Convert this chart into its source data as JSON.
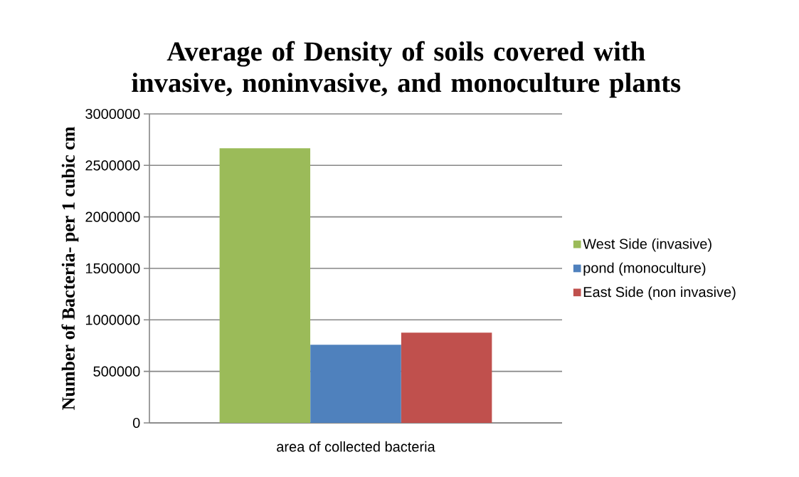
{
  "chart_data": {
    "type": "bar",
    "title": "Average of Density of soils covered with invasive, noninvasive, and monoculture plants",
    "xlabel": "area of collected bacteria",
    "ylabel": "Number of Bacteria- per 1 cubic cm",
    "categories": [
      null
    ],
    "series": [
      {
        "name": "West Side (invasive)",
        "color": "#9bbb59",
        "values": [
          2667000
        ]
      },
      {
        "name": "pond (monoculture)",
        "color": "#4f81bd",
        "values": [
          759000
        ]
      },
      {
        "name": "East Side (non invasive)",
        "color": "#c0504d",
        "values": [
          876000
        ]
      }
    ],
    "ylim": [
      0,
      3000000
    ],
    "yticks": [
      0,
      500000,
      1000000,
      1500000,
      2000000,
      2500000,
      3000000
    ],
    "grid": "y",
    "legend": "right"
  }
}
